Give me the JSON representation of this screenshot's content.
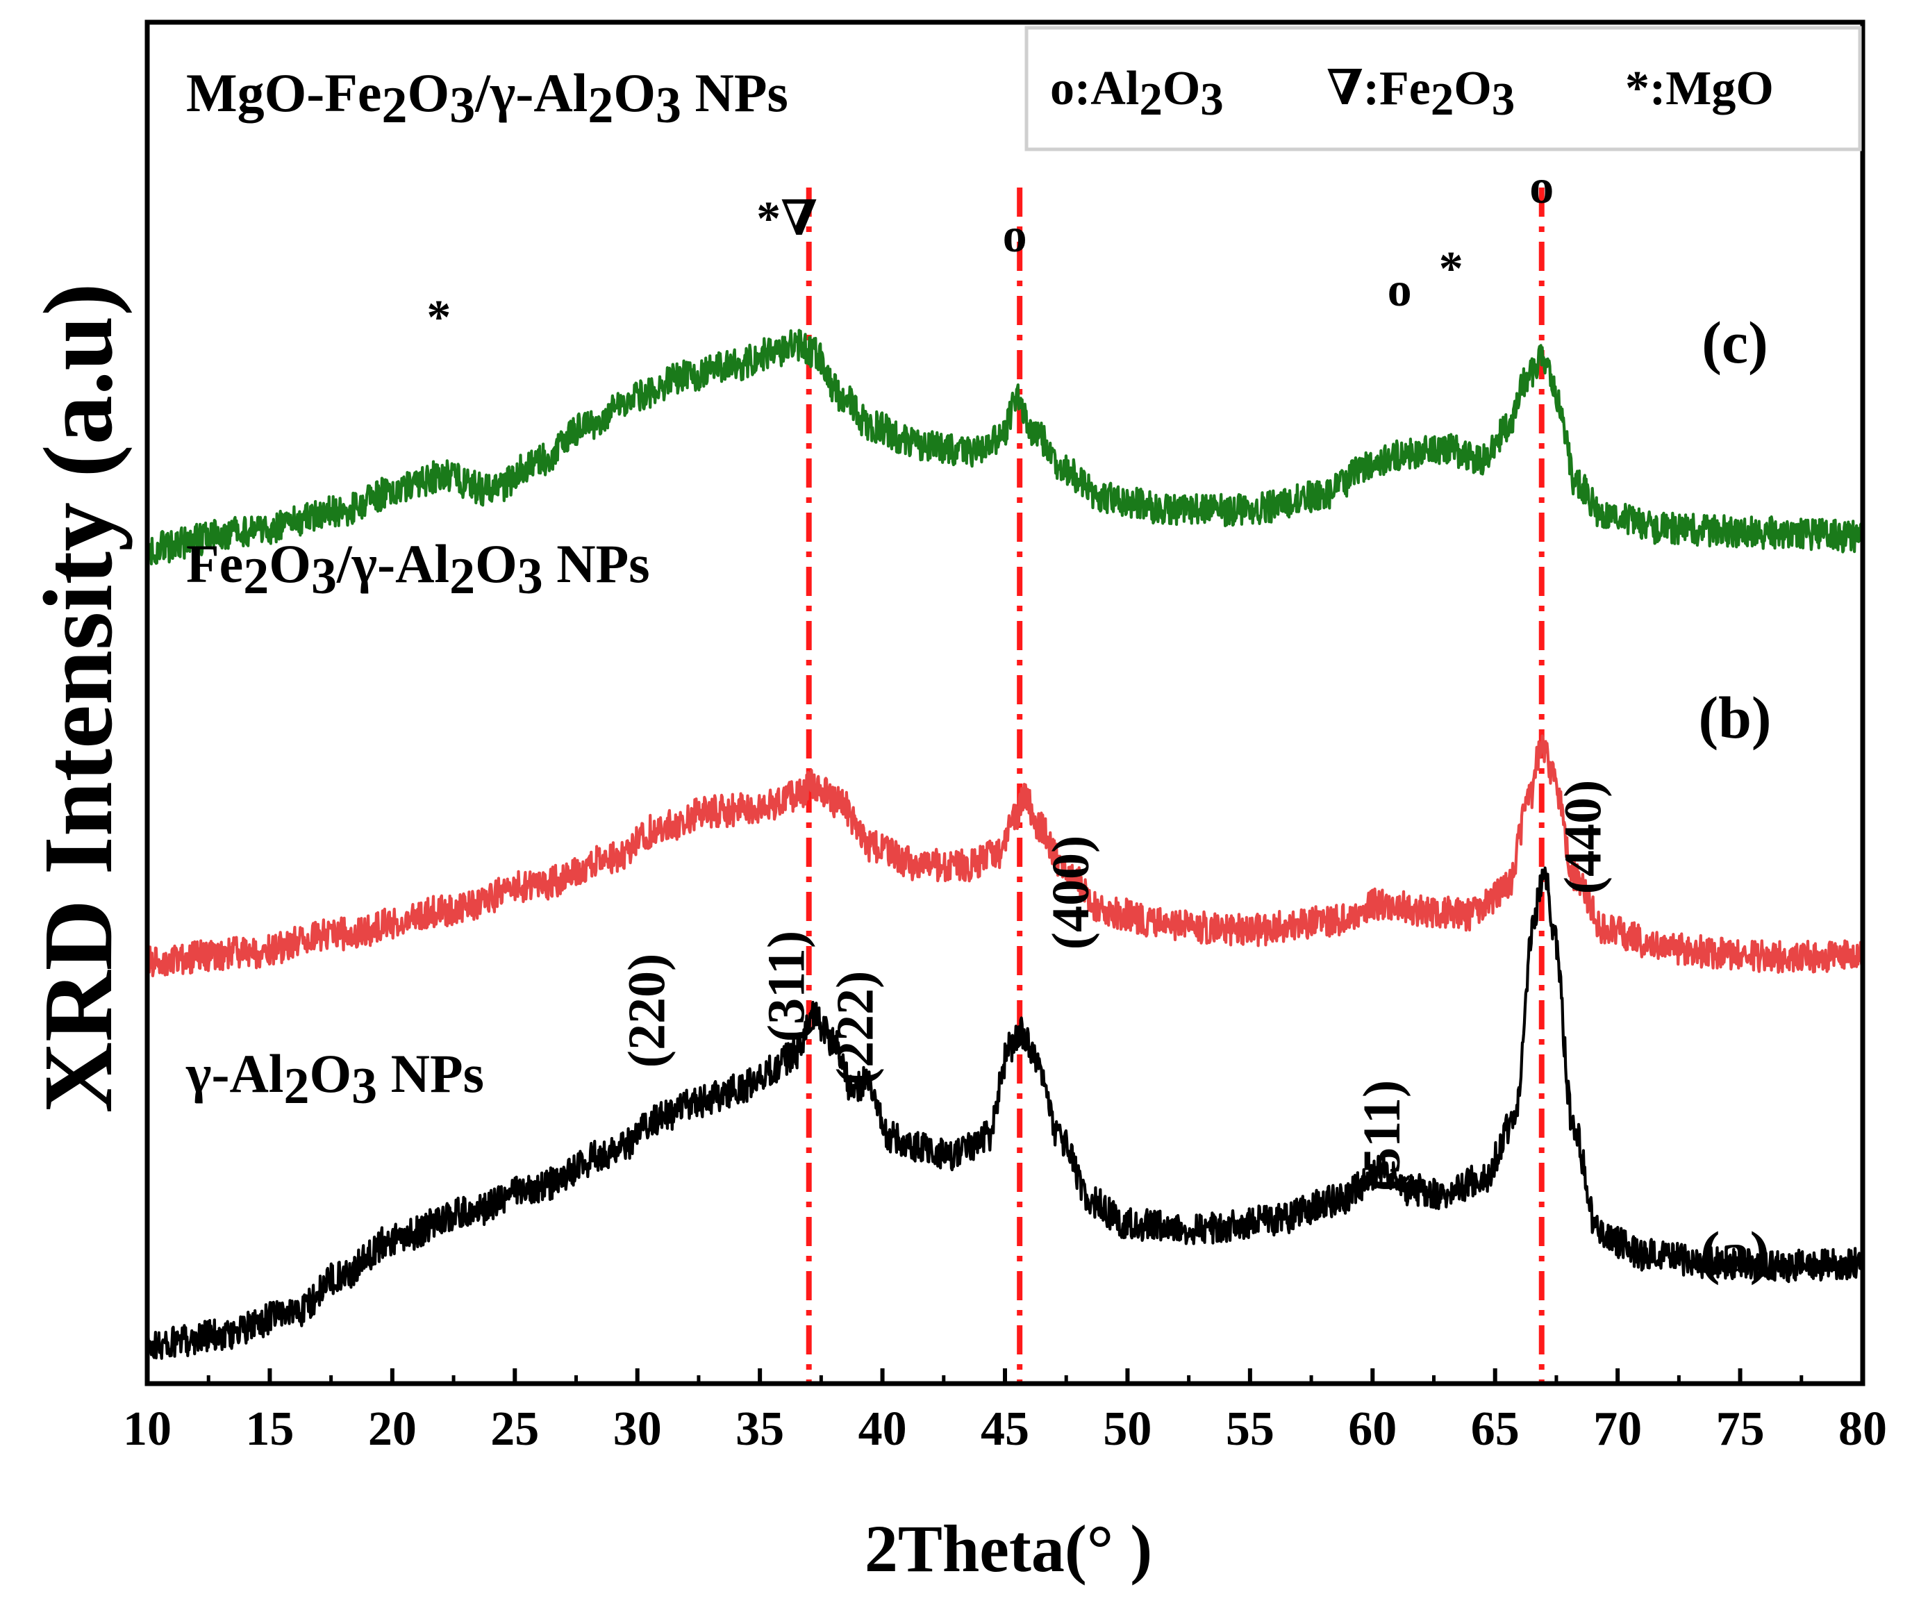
{
  "chart_data": {
    "type": "line",
    "xlabel": "2Theta(° )",
    "ylabel": "XRD Intensity (a.u)",
    "xlim": [
      10,
      80
    ],
    "ylim": [
      0,
      10
    ],
    "xticks": [
      10,
      15,
      20,
      25,
      30,
      35,
      40,
      45,
      50,
      55,
      60,
      65,
      70,
      75,
      80
    ],
    "grid": false,
    "series": [
      {
        "id": "a",
        "name": "γ-Al₂O₃ NPs",
        "label": "(a)",
        "color": "#000000",
        "x": [
          10,
          13,
          16,
          18,
          20,
          23,
          26,
          29,
          31,
          32.5,
          34,
          35.5,
          36.5,
          37.2,
          38,
          38.8,
          39.4,
          40.2,
          41.5,
          43,
          44.3,
          45.2,
          45.7,
          46.3,
          47.2,
          48.5,
          50,
          53,
          56,
          58.5,
          60.5,
          61.5,
          63,
          64.5,
          65.8,
          66.6,
          67.0,
          67.4,
          68.2,
          69.2,
          71,
          74,
          77,
          80
        ],
        "y": [
          0.15,
          0.3,
          0.6,
          1.1,
          1.55,
          1.9,
          2.25,
          2.7,
          3.15,
          3.35,
          3.5,
          3.75,
          4.0,
          4.45,
          4.15,
          3.5,
          3.65,
          2.9,
          2.75,
          2.65,
          2.9,
          4.05,
          4.25,
          3.85,
          2.9,
          2.05,
          1.75,
          1.7,
          1.8,
          2.05,
          2.45,
          2.2,
          2.15,
          2.35,
          3.1,
          5.8,
          6.4,
          5.5,
          3.0,
          1.65,
          1.35,
          1.25,
          1.2,
          1.25
        ]
      },
      {
        "id": "b",
        "name": "Fe₂O₃/γ-Al₂O₃  NPs",
        "label": "(b)",
        "color": "#e84545",
        "x": [
          10,
          14,
          18,
          22,
          26,
          29,
          31,
          33,
          35,
          36.5,
          37.2,
          38.3,
          39.5,
          41.5,
          43.5,
          44.7,
          45.4,
          45.8,
          46.4,
          47.5,
          49,
          52,
          55,
          58,
          60.5,
          62,
          64,
          65.5,
          66.4,
          66.9,
          67.4,
          68.2,
          69.5,
          72,
          76,
          80
        ],
        "y": [
          5.2,
          5.3,
          5.55,
          5.85,
          6.2,
          6.55,
          6.95,
          7.15,
          7.2,
          7.35,
          7.5,
          7.25,
          6.7,
          6.45,
          6.45,
          6.6,
          7.05,
          7.35,
          6.95,
          6.35,
          5.85,
          5.65,
          5.6,
          5.7,
          5.95,
          5.85,
          5.8,
          6.15,
          7.3,
          8.05,
          7.6,
          6.3,
          5.6,
          5.35,
          5.25,
          5.25
        ]
      },
      {
        "id": "c",
        "name": "MgO-Fe₂O₃/γ-Al₂O₃  NPs",
        "label": "(c)",
        "color": "#1a7a1a",
        "x": [
          10,
          14,
          18,
          20.5,
          22,
          24,
          26,
          28,
          30,
          32,
          34,
          35.5,
          36.5,
          37.2,
          38.3,
          39.5,
          41.5,
          43.5,
          44.8,
          45.5,
          46.2,
          47.5,
          49,
          52,
          55,
          58,
          60,
          61.5,
          63,
          64.5,
          65.5,
          66.3,
          66.9,
          67.5,
          68.3,
          69.5,
          72,
          76,
          80
        ],
        "y": [
          10.6,
          10.8,
          11.1,
          11.4,
          11.55,
          11.35,
          11.75,
          12.2,
          12.6,
          12.85,
          13.0,
          13.15,
          13.25,
          13.15,
          12.6,
          12.2,
          11.95,
          11.85,
          12.0,
          12.55,
          12.1,
          11.6,
          11.25,
          11.1,
          11.1,
          11.3,
          11.7,
          11.85,
          11.9,
          11.75,
          12.15,
          12.8,
          13.1,
          12.6,
          11.45,
          11.0,
          10.85,
          10.8,
          10.75
        ]
      }
    ],
    "reference_lines": [
      37.0,
      45.6,
      66.9
    ],
    "reference_line_color": "#ff1a1a",
    "miller_indices": [
      {
        "label": "(220)",
        "x": 31.1
      },
      {
        "label": "(311)",
        "x": 36.8
      },
      {
        "label": "(222)",
        "x": 39.6
      },
      {
        "label": "(400)",
        "x": 48.4
      },
      {
        "label": "(511)",
        "x": 61.1
      },
      {
        "label": "(440)",
        "x": 69.3
      }
    ],
    "phase_markers": [
      {
        "label": "*",
        "x": 21.9,
        "series": "c"
      },
      {
        "label": "*∇",
        "x": 36.1,
        "series": "c"
      },
      {
        "label": "o",
        "x": 45.4,
        "series": "c"
      },
      {
        "label": "o",
        "x": 61.1,
        "series": "c"
      },
      {
        "label": "*",
        "x": 63.2,
        "series": "c"
      },
      {
        "label": "o",
        "x": 66.9,
        "series": "c"
      }
    ],
    "legend": {
      "placement": "top-right",
      "entries": [
        {
          "symbol": "o",
          "text": ":Al₂O₃"
        },
        {
          "symbol": "∇",
          "text": ":Fe₂O₃"
        },
        {
          "symbol": "*",
          "text": ":MgO"
        }
      ]
    }
  }
}
